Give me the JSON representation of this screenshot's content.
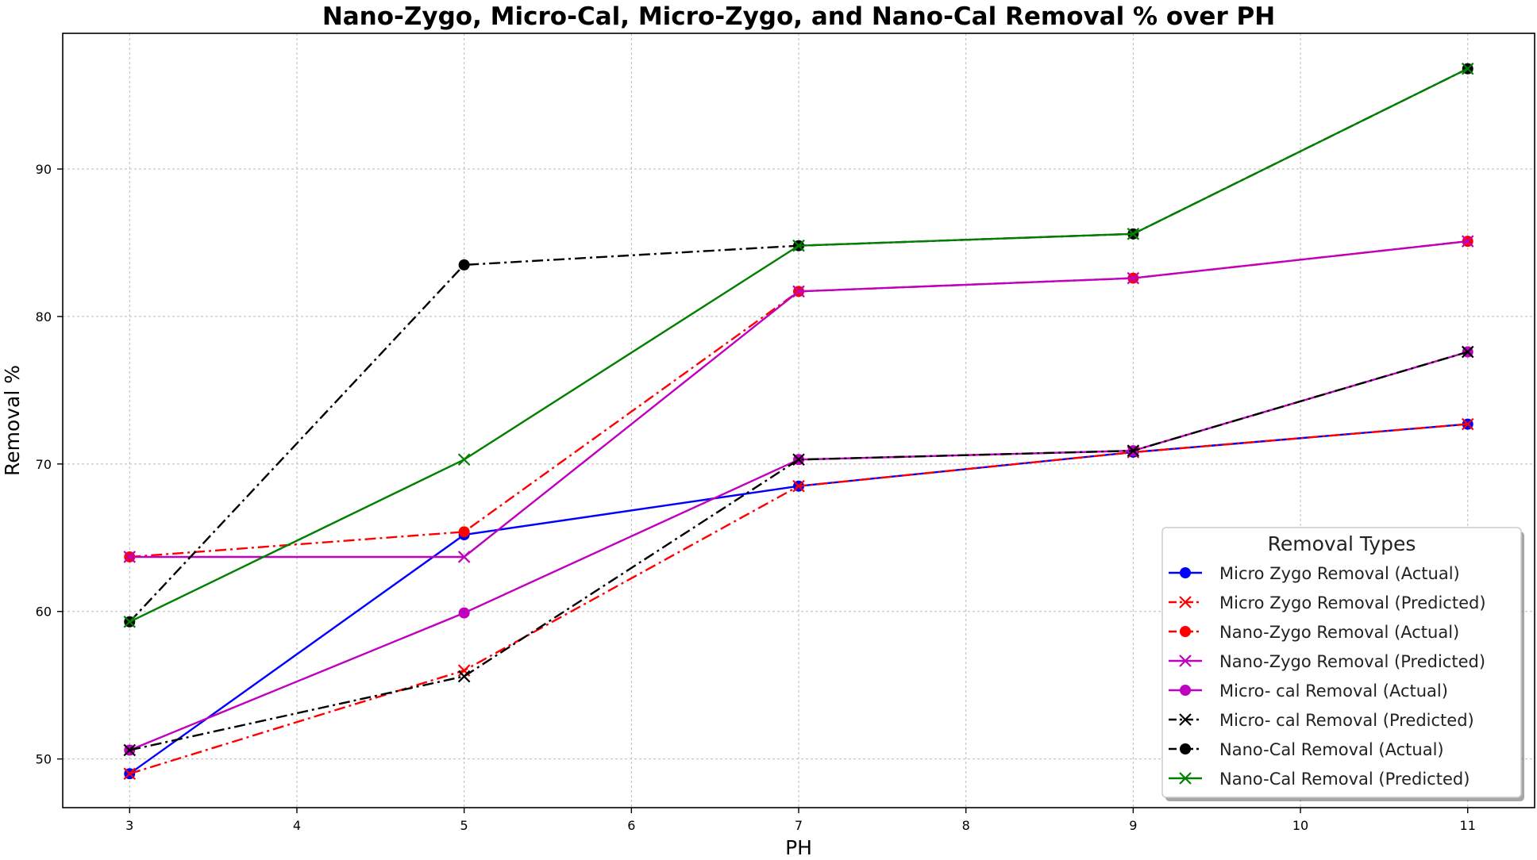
{
  "chart_data": {
    "type": "line",
    "title": "Nano-Zygo, Micro-Cal, Micro-Zygo, and  Nano-Cal Removal % over PH",
    "xlabel": "PH",
    "ylabel": "Removal %",
    "xlim": [
      2.6,
      11.4
    ],
    "ylim": [
      46.7,
      99.2
    ],
    "xticks": [
      3,
      4,
      5,
      6,
      7,
      8,
      9,
      10,
      11
    ],
    "yticks": [
      50,
      60,
      70,
      80,
      90
    ],
    "grid": true,
    "legend": {
      "title": "Removal Types",
      "placement": "bottom-right"
    },
    "x": [
      3,
      5,
      7,
      9,
      11
    ],
    "series": [
      {
        "name": "Micro Zygo Removal (Actual)",
        "values": [
          49.0,
          65.2,
          68.5,
          70.8,
          72.7
        ],
        "color": "#0000ff",
        "dash": "solid",
        "marker": "circle"
      },
      {
        "name": "Micro Zygo Removal (Predicted)",
        "values": [
          49.0,
          56.0,
          68.5,
          70.8,
          72.7
        ],
        "color": "#ff0000",
        "dash": "dashdot",
        "marker": "x"
      },
      {
        "name": "Nano-Zygo Removal (Actual)",
        "values": [
          63.7,
          65.4,
          81.7,
          82.6,
          85.1
        ],
        "color": "#ff0000",
        "dash": "dashdot",
        "marker": "circle"
      },
      {
        "name": "Nano-Zygo Removal (Predicted)",
        "values": [
          63.7,
          63.7,
          81.7,
          82.6,
          85.1
        ],
        "color": "#bf00bf",
        "dash": "solid",
        "marker": "x"
      },
      {
        "name": "Micro- cal  Removal (Actual)",
        "values": [
          50.6,
          59.9,
          70.3,
          70.9,
          77.6
        ],
        "color": "#bf00bf",
        "dash": "solid",
        "marker": "circle"
      },
      {
        "name": "Micro- cal Removal (Predicted)",
        "values": [
          50.6,
          55.6,
          70.3,
          70.9,
          77.6
        ],
        "color": "#000000",
        "dash": "dashdot",
        "marker": "x"
      },
      {
        "name": "Nano-Cal Removal (Actual)",
        "values": [
          59.3,
          83.5,
          84.8,
          85.6,
          96.8
        ],
        "color": "#000000",
        "dash": "dashdot",
        "marker": "circle"
      },
      {
        "name": "Nano-Cal Removal (Predicted)",
        "values": [
          59.3,
          70.3,
          84.8,
          85.6,
          96.8
        ],
        "color": "#007f00",
        "dash": "solid",
        "marker": "x"
      }
    ]
  }
}
